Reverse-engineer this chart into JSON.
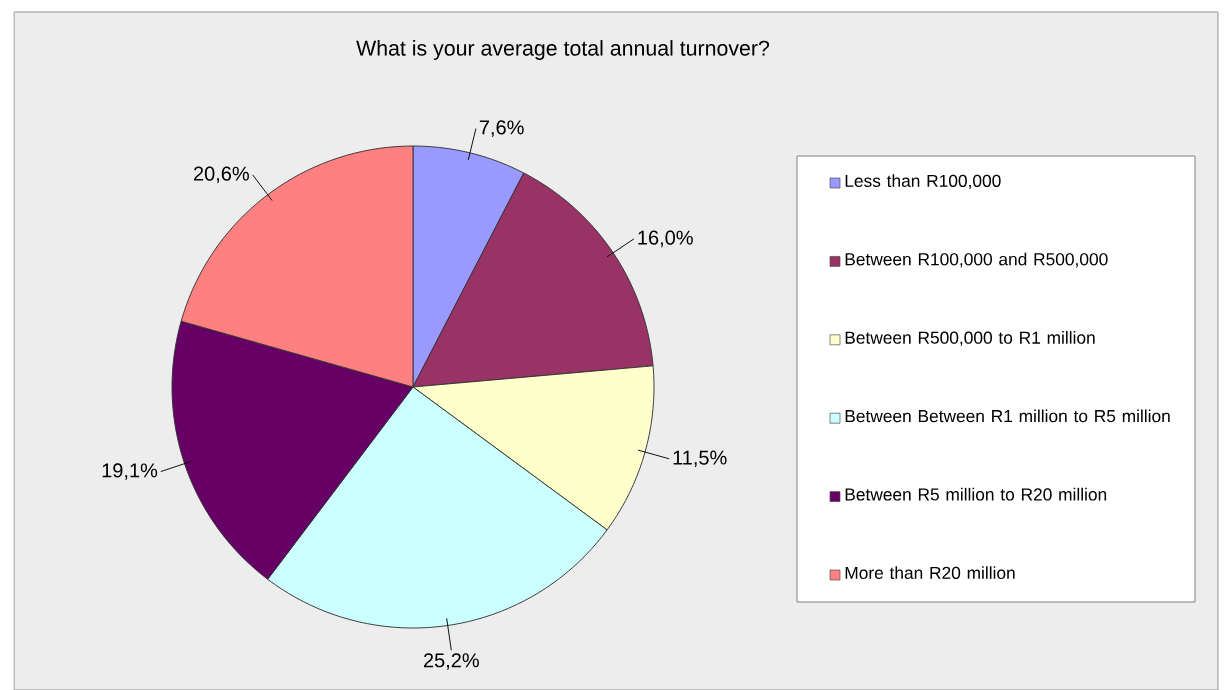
{
  "chart_data": {
    "type": "pie",
    "title": "What is your average total annual turnover?",
    "categories": [
      "Less than R100,000",
      "Between R100,000 and R500,000",
      "Between R500,000 to R1 million",
      "Between Between R1 million to R5 million",
      "Between R5 million to R20 million",
      "More than R20 million"
    ],
    "values": [
      7.6,
      16.0,
      11.5,
      25.2,
      19.1,
      20.6
    ],
    "colors": [
      "#9999ff",
      "#993366",
      "#ffffcc",
      "#ccffff",
      "#660066",
      "#ff8080"
    ],
    "value_labels": [
      "7,6%",
      "16,0%",
      "11,5%",
      "25,2%",
      "19,1%",
      "20,6%"
    ],
    "legend": "right"
  }
}
